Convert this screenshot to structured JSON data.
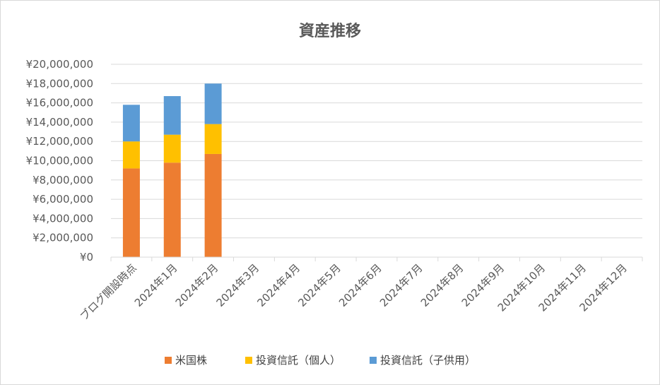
{
  "chart_data": {
    "type": "bar",
    "stacked": true,
    "title": "資産推移",
    "categories": [
      "ブログ開設時点",
      "2024年1月",
      "2024年2月",
      "2024年3月",
      "2024年4月",
      "2024年5月",
      "2024年6月",
      "2024年7月",
      "2024年8月",
      "2024年9月",
      "2024年10月",
      "2024年11月",
      "2024年12月"
    ],
    "series": [
      {
        "name": "米国株",
        "color": "#ed7d31",
        "values": [
          9200000,
          9800000,
          10700000,
          null,
          null,
          null,
          null,
          null,
          null,
          null,
          null,
          null,
          null
        ]
      },
      {
        "name": "投資信託（個人）",
        "color": "#ffc000",
        "values": [
          2800000,
          2900000,
          3100000,
          null,
          null,
          null,
          null,
          null,
          null,
          null,
          null,
          null,
          null
        ]
      },
      {
        "name": "投資信託（子供用）",
        "color": "#5b9bd5",
        "values": [
          3800000,
          4000000,
          4200000,
          null,
          null,
          null,
          null,
          null,
          null,
          null,
          null,
          null,
          null
        ]
      }
    ],
    "ylim": [
      0,
      20000000
    ],
    "yticks": [
      0,
      2000000,
      4000000,
      6000000,
      8000000,
      10000000,
      12000000,
      14000000,
      16000000,
      18000000,
      20000000
    ],
    "ytick_labels": [
      "¥0",
      "¥2,000,000",
      "¥4,000,000",
      "¥6,000,000",
      "¥8,000,000",
      "¥10,000,000",
      "¥12,000,000",
      "¥14,000,000",
      "¥16,000,000",
      "¥18,000,000",
      "¥20,000,000"
    ],
    "grid": true,
    "legend_position": "bottom"
  }
}
